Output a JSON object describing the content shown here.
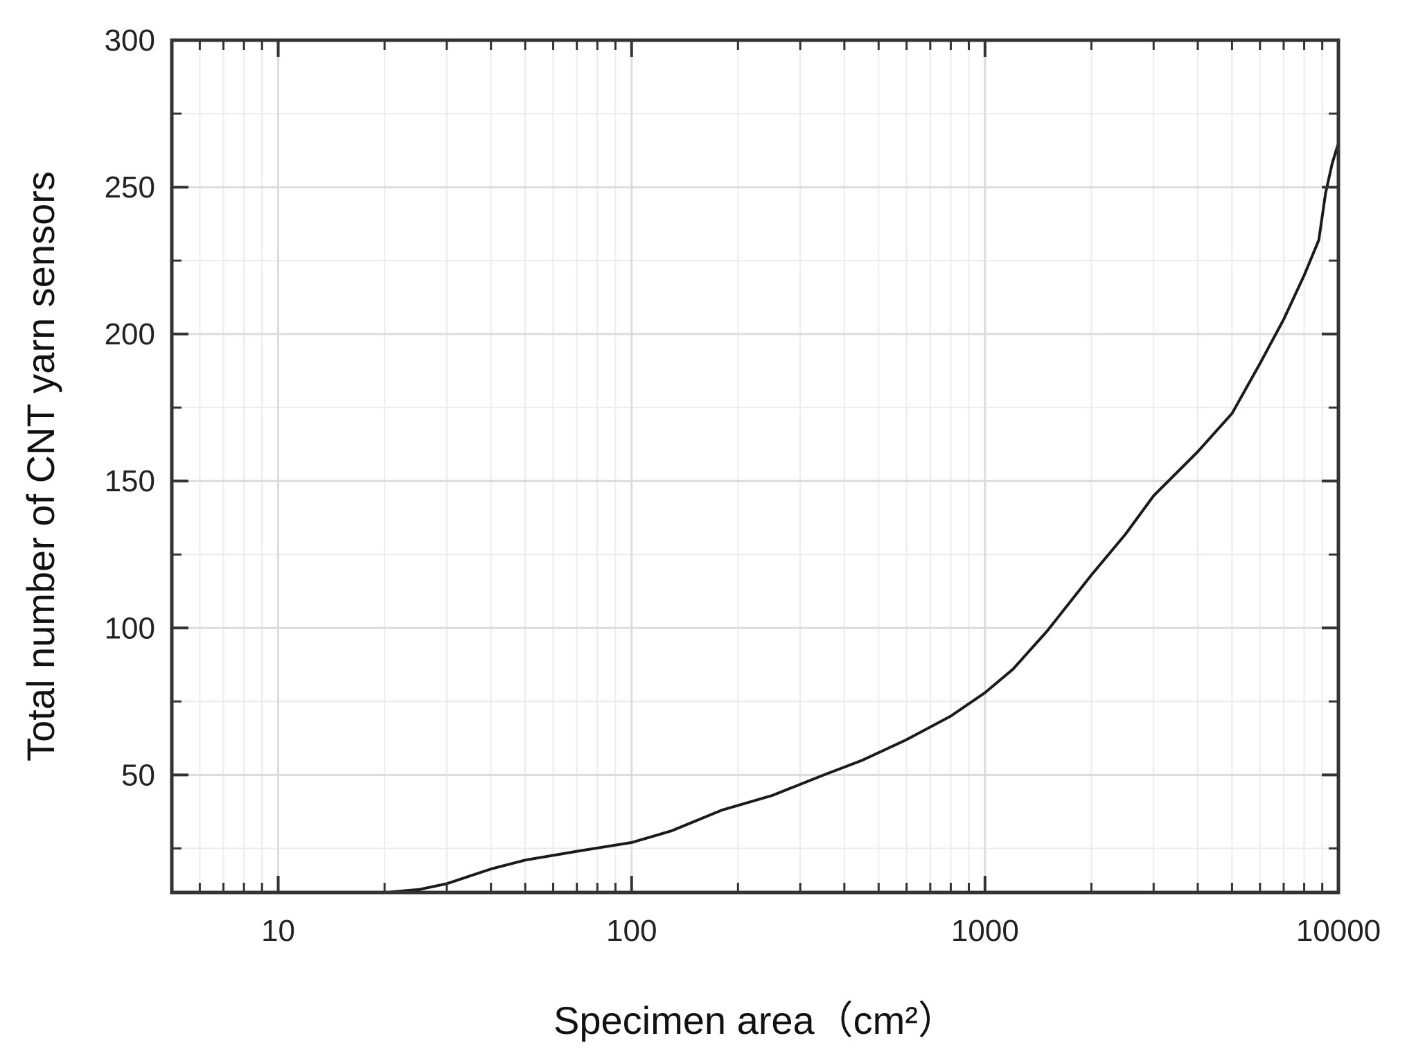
{
  "chart_data": {
    "type": "line",
    "title": "",
    "xlabel": "Specimen area（cm²）",
    "ylabel": "Total number of CNT yarn sensors",
    "x_scale": "log",
    "xlim": [
      5,
      10000
    ],
    "ylim": [
      10,
      300
    ],
    "x_ticks": [
      10,
      100,
      1000,
      10000
    ],
    "x_tick_labels": [
      "10",
      "100",
      "1000",
      "10000"
    ],
    "y_ticks": [
      50,
      100,
      150,
      200,
      250,
      300
    ],
    "y_tick_labels": [
      "50",
      "100",
      "150",
      "200",
      "250",
      "300"
    ],
    "grid": true,
    "legend": "none",
    "series": [
      {
        "color": "#1a1a1a",
        "x": [
          20,
          25,
          30,
          40,
          50,
          70,
          100,
          130,
          180,
          250,
          350,
          450,
          600,
          800,
          1000,
          1200,
          1500,
          2000,
          2500,
          3000,
          4000,
          5000,
          6000,
          7000,
          8000,
          8800,
          9200,
          9600,
          10000
        ],
        "y": [
          10,
          11,
          13,
          18,
          21,
          24,
          27,
          31,
          38,
          43,
          50,
          55,
          62,
          70,
          78,
          86,
          99,
          118,
          132,
          145,
          160,
          173,
          190,
          205,
          220,
          232,
          248,
          258,
          265
        ]
      }
    ]
  }
}
